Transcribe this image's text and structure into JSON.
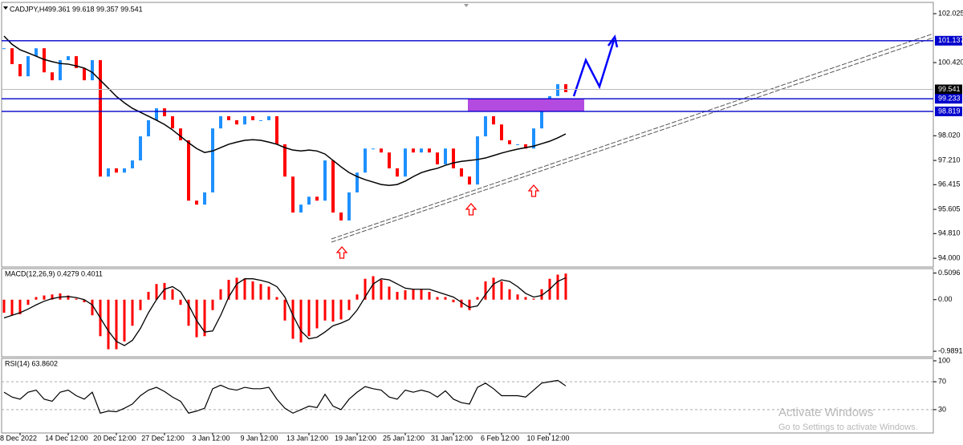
{
  "chart_data": [
    {
      "type": "line",
      "title": "CADJPY,H4",
      "subtitle": "99.361 99.618 99.357 99.541",
      "categories": [
        null,
        null,
        "8 Dec 2022",
        null,
        null,
        null,
        null,
        null,
        "14 Dec 12:00",
        null,
        null,
        null,
        null,
        null,
        "20 Dec 12:00",
        null,
        null,
        null,
        null,
        null,
        "27 Dec 12:00",
        null,
        null,
        null,
        null,
        null,
        "3 Jan 12:00",
        null,
        null,
        null,
        null,
        null,
        "9 Jan 12:00",
        null,
        null,
        null,
        null,
        null,
        "13 Jan 12:00",
        null,
        null,
        null,
        null,
        null,
        "19 Jan 12:00",
        null,
        null,
        null,
        null,
        null,
        "25 Jan 12:00",
        null,
        null,
        null,
        null,
        null,
        "31 Jan 12:00",
        null,
        null,
        null,
        null,
        null,
        "6 Feb 12:00",
        null,
        null,
        null,
        null,
        null,
        "10 Feb 12:00",
        null,
        null
      ],
      "series": [
        {
          "color": "#1e90ff",
          "down_color": "#ff0000",
          "values": [
            100.89,
            100.37,
            99.97,
            100.63,
            100.89,
            100.1,
            99.84,
            100.5,
            100.63,
            100.24,
            99.84,
            100.5,
            96.68,
            96.95,
            96.81,
            96.95,
            97.21,
            98.0,
            98.53,
            98.92,
            98.66,
            98.26,
            97.87,
            95.89,
            95.76,
            96.16,
            98.26,
            98.66,
            98.53,
            98.39,
            98.66,
            98.53,
            98.53,
            98.66,
            97.74,
            96.68,
            95.5,
            95.76,
            96.02,
            95.89,
            97.21,
            95.5,
            95.24,
            96.16,
            96.81,
            97.6,
            97.6,
            97.47,
            96.95,
            96.68,
            97.6,
            97.47,
            97.6,
            97.47,
            97.08,
            97.6,
            96.95,
            96.68,
            96.42,
            98.0,
            98.66,
            98.39,
            97.87,
            97.74,
            97.74,
            97.6,
            98.26,
            99.05,
            99.32,
            99.71,
            99.45
          ]
        },
        {
          "color": "#000000",
          "values": [
            101.29,
            101.02,
            100.84,
            100.74,
            100.63,
            100.52,
            100.45,
            100.39,
            100.37,
            100.31,
            100.24,
            100.1,
            99.84,
            99.58,
            99.31,
            99.1,
            98.92,
            98.79,
            98.66,
            98.53,
            98.39,
            98.21,
            98.0,
            97.79,
            97.6,
            97.47,
            97.52,
            97.63,
            97.74,
            97.81,
            97.87,
            97.89,
            97.87,
            97.81,
            97.74,
            97.63,
            97.55,
            97.52,
            97.55,
            97.52,
            97.42,
            97.21,
            97.0,
            96.81,
            96.68,
            96.58,
            96.5,
            96.42,
            96.39,
            96.42,
            96.53,
            96.68,
            96.81,
            96.89,
            96.95,
            97.05,
            97.13,
            97.18,
            97.21,
            97.24,
            97.29,
            97.37,
            97.45,
            97.52,
            97.58,
            97.63,
            97.68,
            97.76,
            97.84,
            97.95,
            98.08
          ]
        }
      ],
      "ylim": [
        93.74,
        102.21
      ],
      "yticks": [
        102.025,
        {
          "value": 100.42,
          "label": "100.420"
        },
        {
          "value": 98.02,
          "label": "98.020"
        },
        {
          "value": 97.21,
          "label": "97.210"
        },
        96.415,
        95.605,
        {
          "value": 94.81,
          "label": "94.810"
        },
        {
          "value": 94.0,
          "label": "94.000"
        }
      ],
      "levels": [
        101.137,
        99.233,
        98.819
      ],
      "level_color": "#0000cc",
      "last_price": 99.541,
      "zone_color": "#b44be1"
    },
    {
      "type": "macd",
      "title": "MACD(12,26,9) 0.4279 0.4011",
      "series": [
        {
          "type": "bar",
          "color": "#ff0000",
          "values": [
            -0.25,
            -0.3,
            -0.28,
            -0.1,
            0.05,
            0.08,
            0.1,
            0.12,
            0.08,
            0.02,
            -0.05,
            -0.3,
            -0.7,
            -0.95,
            -0.95,
            -0.8,
            -0.5,
            -0.2,
            0.15,
            0.3,
            0.32,
            0.2,
            -0.1,
            -0.5,
            -0.72,
            -0.7,
            -0.2,
            0.2,
            0.38,
            0.42,
            0.4,
            0.35,
            0.3,
            0.25,
            0.05,
            -0.4,
            -0.75,
            -0.82,
            -0.7,
            -0.55,
            -0.4,
            -0.42,
            -0.38,
            -0.2,
            0.1,
            0.4,
            0.45,
            0.38,
            0.25,
            0.15,
            0.18,
            0.2,
            0.2,
            0.15,
            0.05,
            0.05,
            -0.05,
            -0.15,
            -0.2,
            0.05,
            0.35,
            0.42,
            0.35,
            0.2,
            0.1,
            0.05,
            0.02,
            0.2,
            0.4,
            0.48,
            0.5
          ]
        },
        {
          "type": "line",
          "color": "#000000",
          "values": [
            -0.35,
            -0.3,
            -0.25,
            -0.18,
            -0.1,
            -0.03,
            0.02,
            0.05,
            0.06,
            0.04,
            0.0,
            -0.1,
            -0.35,
            -0.6,
            -0.8,
            -0.88,
            -0.78,
            -0.55,
            -0.25,
            0.0,
            0.2,
            0.25,
            0.15,
            -0.1,
            -0.4,
            -0.62,
            -0.6,
            -0.3,
            0.05,
            0.3,
            0.4,
            0.4,
            0.37,
            0.33,
            0.25,
            0.05,
            -0.3,
            -0.6,
            -0.75,
            -0.72,
            -0.62,
            -0.5,
            -0.45,
            -0.38,
            -0.2,
            0.05,
            0.3,
            0.4,
            0.38,
            0.3,
            0.22,
            0.2,
            0.2,
            0.2,
            0.15,
            0.1,
            0.05,
            -0.05,
            -0.15,
            -0.12,
            0.1,
            0.3,
            0.38,
            0.35,
            0.25,
            0.12,
            0.05,
            0.08,
            0.2,
            0.35,
            0.42
          ]
        }
      ],
      "ylim": [
        -1.08,
        0.58
      ],
      "yticks": [
        0.5096,
        {
          "value": 0,
          "label": "0.00"
        },
        -0.9891
      ]
    },
    {
      "type": "line",
      "title": "RSI(14) 63.8602",
      "color": "#000000",
      "values": [
        55,
        48,
        45,
        55,
        58,
        45,
        42,
        55,
        58,
        50,
        45,
        55,
        25,
        28,
        27,
        32,
        38,
        50,
        58,
        62,
        56,
        48,
        42,
        25,
        28,
        32,
        60,
        65,
        60,
        58,
        62,
        60,
        60,
        62,
        45,
        32,
        25,
        30,
        35,
        33,
        52,
        35,
        30,
        45,
        55,
        63,
        60,
        58,
        48,
        45,
        58,
        55,
        58,
        55,
        48,
        57,
        45,
        40,
        38,
        62,
        68,
        60,
        50,
        50,
        50,
        48,
        58,
        68,
        70,
        72,
        64
      ],
      "ylim": [
        0,
        100
      ],
      "yticks": [
        100,
        70,
        30
      ],
      "grid": true
    }
  ],
  "watermark": {
    "title": "Activate Windows",
    "text": "Go to Settings to activate Windows."
  }
}
